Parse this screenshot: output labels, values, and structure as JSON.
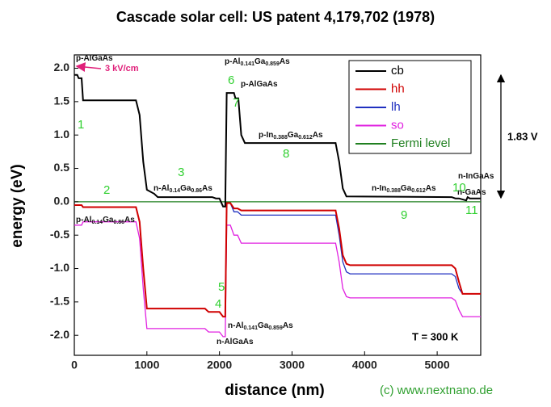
{
  "chart_data": {
    "type": "line",
    "title": "Cascade solar cell: US patent 4,179,702  (1978)",
    "x_label": "distance (nm)",
    "y_label": "energy (eV)",
    "xlim": [
      0,
      5600
    ],
    "ylim": [
      -2.3,
      2.2
    ],
    "xticks": [
      0,
      1000,
      2000,
      3000,
      4000,
      5000
    ],
    "yticks": [
      {
        "value": -2,
        "label": "-2.0"
      },
      {
        "value": -1.5,
        "label": "-1.5"
      },
      {
        "value": -1,
        "label": "-1.0"
      },
      {
        "value": -0.5,
        "label": "-0.5"
      },
      {
        "value": 0,
        "label": "0.0"
      },
      {
        "value": 0.5,
        "label": "0.5"
      },
      {
        "value": 1,
        "label": "1.0"
      },
      {
        "value": 1.5,
        "label": "1.5"
      },
      {
        "value": 2,
        "label": "2.0"
      }
    ],
    "series": [
      {
        "name": "cb",
        "color": "#000000",
        "x": [
          0,
          40,
          60,
          100,
          120,
          850,
          900,
          950,
          1000,
          1100,
          1150,
          1900,
          1950,
          2000,
          2050,
          2080,
          2100,
          2200,
          2220,
          2260,
          2300,
          2350,
          3600,
          3650,
          3700,
          3750,
          5200,
          5250,
          5300,
          5400,
          5420,
          5450,
          5600
        ],
        "values": [
          1.9,
          1.9,
          1.85,
          1.85,
          1.52,
          1.52,
          1.3,
          0.6,
          0.18,
          0.12,
          0.07,
          0.07,
          0.05,
          0.05,
          -0.07,
          -0.07,
          1.63,
          1.63,
          1.55,
          1.55,
          1.0,
          0.88,
          0.88,
          0.6,
          0.2,
          0.08,
          0.07,
          0.05,
          0.05,
          0.02,
          0.07,
          0.05,
          0.05
        ]
      },
      {
        "name": "hh",
        "color": "#d00000",
        "x": [
          0,
          100,
          120,
          850,
          900,
          950,
          1000,
          1800,
          1850,
          2000,
          2050,
          2080,
          2100,
          2150,
          2200,
          2250,
          2300,
          3600,
          3650,
          3700,
          3750,
          3800,
          5200,
          5250,
          5300,
          5350,
          5600
        ],
        "values": [
          -0.05,
          -0.05,
          -0.08,
          -0.08,
          -0.3,
          -1.0,
          -1.6,
          -1.6,
          -1.65,
          -1.65,
          -1.72,
          -1.72,
          -0.02,
          -0.02,
          -0.1,
          -0.1,
          -0.13,
          -0.13,
          -0.4,
          -0.8,
          -0.93,
          -0.95,
          -0.95,
          -1.0,
          -1.2,
          -1.38,
          -1.38
        ]
      },
      {
        "name": "lh",
        "color": "#2030c0",
        "x": [
          0,
          100,
          120,
          850,
          900,
          950,
          1000,
          1800,
          1850,
          2000,
          2050,
          2080,
          2100,
          2150,
          2200,
          2250,
          2300,
          3600,
          3650,
          3700,
          3750,
          3800,
          5200,
          5250,
          5300,
          5350,
          5600
        ],
        "values": [
          -0.05,
          -0.05,
          -0.08,
          -0.08,
          -0.3,
          -1.0,
          -1.6,
          -1.6,
          -1.65,
          -1.65,
          -1.72,
          -1.72,
          -0.02,
          -0.02,
          -0.15,
          -0.15,
          -0.2,
          -0.2,
          -0.5,
          -0.9,
          -1.05,
          -1.08,
          -1.08,
          -1.12,
          -1.3,
          -1.38,
          -1.38
        ]
      },
      {
        "name": "so",
        "color": "#e020e0",
        "x": [
          0,
          100,
          120,
          850,
          900,
          950,
          1000,
          1800,
          1850,
          2000,
          2050,
          2080,
          2100,
          2150,
          2200,
          2250,
          2300,
          3600,
          3650,
          3700,
          3750,
          3800,
          5200,
          5250,
          5300,
          5350,
          5600
        ],
        "values": [
          -0.35,
          -0.35,
          -0.3,
          -0.3,
          -0.55,
          -1.3,
          -1.9,
          -1.9,
          -1.95,
          -1.95,
          -2.02,
          -2.02,
          -0.35,
          -0.35,
          -0.5,
          -0.5,
          -0.62,
          -0.62,
          -0.9,
          -1.3,
          -1.42,
          -1.44,
          -1.44,
          -1.48,
          -1.62,
          -1.72,
          -1.72
        ]
      },
      {
        "name": "Fermi level",
        "color": "#208020",
        "x": [
          0,
          5600
        ],
        "values": [
          0,
          0
        ]
      }
    ],
    "layer_annotations": [
      {
        "parts": [
          "p-AlGaAs"
        ]
      },
      {
        "parts": [
          "p-Al",
          "0.141",
          "Ga",
          "0.859",
          "As"
        ]
      },
      {
        "parts": [
          "p-AlGaAs"
        ]
      },
      {
        "parts": [
          "p-In",
          "0.388",
          "Ga",
          "0.612",
          "As"
        ]
      },
      {
        "parts": [
          "n-Al",
          "0.14",
          "Ga",
          "0.86",
          "As"
        ]
      },
      {
        "parts": [
          "n-In",
          "0.388",
          "Ga",
          "0.612",
          "As"
        ]
      },
      {
        "parts": [
          "n-InGaAs"
        ]
      },
      {
        "parts": [
          "n-GaAs"
        ]
      },
      {
        "parts": [
          "p-Al",
          "0.14",
          "Ga",
          "0.86",
          "As"
        ]
      },
      {
        "parts": [
          "n-Al",
          "0.141",
          "Ga",
          "0.859",
          "As"
        ]
      },
      {
        "parts": [
          "n-AlGaAs"
        ]
      }
    ],
    "layer_numbers": [
      "1",
      "2",
      "3",
      "4",
      "5",
      "6",
      "7",
      "8",
      "9",
      "10",
      "11"
    ],
    "field_annotation": "3 kV/cm",
    "voltage_annotation": "1.83 V",
    "temperature_annotation": "T = 300 K",
    "copyright": "(c) www.nextnano.de"
  }
}
